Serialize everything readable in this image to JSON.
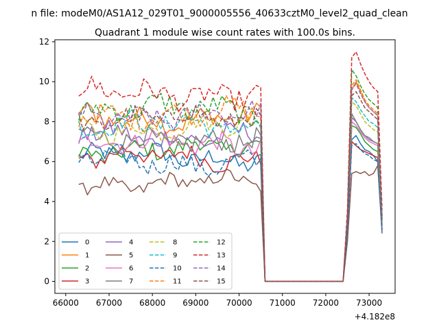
{
  "chart_data": {
    "type": "line",
    "suptitle": "n file: modeM0/AS1A12_029T01_9000005556_40633cztM0_level2_quad_clean",
    "title": "Quadrant 1 module wise count rates with 100.0s bins.",
    "xlabel": "",
    "ylabel": "",
    "x_offset_label": "+4.182e8",
    "xlim": [
      65750,
      73600
    ],
    "ylim": [
      -0.6,
      12.1
    ],
    "x_ticks": [
      66000,
      67000,
      68000,
      69000,
      70000,
      71000,
      72000,
      73000
    ],
    "x_tick_labels": [
      "66000",
      "67000",
      "68000",
      "69000",
      "70000",
      "71000",
      "72000",
      "73000"
    ],
    "y_ticks": [
      0,
      2,
      4,
      6,
      8,
      10,
      12
    ],
    "y_tick_labels": [
      "0",
      "2",
      "4",
      "6",
      "8",
      "10",
      "12"
    ],
    "grid": false,
    "legend_position": "lower-left",
    "x_segments": {
      "seg1": {
        "start": 66300,
        "end": 70500,
        "step": 100
      },
      "gap_zero": [
        70600,
        72400
      ],
      "seg2": {
        "start": 72500,
        "end": 73300,
        "step": 100
      }
    },
    "series": [
      {
        "name": "0",
        "color": "#1f77b4",
        "dashed": false,
        "seg1_base": 6.2,
        "seg1_amp": 0.45,
        "seg2": [
          2.5,
          7.1,
          7.3,
          6.9,
          6.6,
          6.5,
          6.3,
          6.0,
          2.6
        ]
      },
      {
        "name": "1",
        "color": "#ff7f0e",
        "dashed": false,
        "seg1_base": 8.2,
        "seg1_amp": 0.5,
        "seg2": [
          3.1,
          9.6,
          10.0,
          9.5,
          9.0,
          8.7,
          8.5,
          8.3,
          3.0
        ]
      },
      {
        "name": "2",
        "color": "#2ca02c",
        "dashed": false,
        "seg1_base": 6.6,
        "seg1_amp": 0.45,
        "seg2": [
          2.7,
          7.8,
          7.7,
          7.4,
          7.0,
          6.8,
          6.6,
          6.5,
          2.7
        ]
      },
      {
        "name": "3",
        "color": "#d62728",
        "dashed": false,
        "seg1_base": 6.2,
        "seg1_amp": 0.45,
        "seg2": [
          2.6,
          7.0,
          6.8,
          6.6,
          6.5,
          6.4,
          6.3,
          6.2,
          2.6
        ]
      },
      {
        "name": "4",
        "color": "#9467bd",
        "dashed": false,
        "seg1_base": 7.3,
        "seg1_amp": 0.5,
        "seg2": [
          2.8,
          8.2,
          8.0,
          7.6,
          7.3,
          7.1,
          7.0,
          6.9,
          2.8
        ]
      },
      {
        "name": "5",
        "color": "#8c564b",
        "dashed": false,
        "seg1_base": 4.9,
        "seg1_amp": 0.35,
        "seg2": [
          2.0,
          5.4,
          5.5,
          5.4,
          5.5,
          5.3,
          5.4,
          5.8,
          2.4
        ]
      },
      {
        "name": "6",
        "color": "#e377c2",
        "dashed": false,
        "seg1_base": 6.9,
        "seg1_amp": 0.5,
        "seg2": [
          2.8,
          8.0,
          7.8,
          7.5,
          7.2,
          7.0,
          6.9,
          6.8,
          2.7
        ]
      },
      {
        "name": "7",
        "color": "#7f7f7f",
        "dashed": false,
        "seg1_base": 7.1,
        "seg1_amp": 0.5,
        "seg2": [
          2.8,
          8.4,
          8.0,
          7.6,
          7.3,
          7.2,
          7.0,
          6.9,
          2.8
        ]
      },
      {
        "name": "8",
        "color": "#bcbd22",
        "dashed": true,
        "seg1_base": 7.7,
        "seg1_amp": 0.45,
        "seg2": [
          3.0,
          9.0,
          8.8,
          8.4,
          8.0,
          7.8,
          7.6,
          7.5,
          3.0
        ]
      },
      {
        "name": "9",
        "color": "#17becf",
        "dashed": true,
        "seg1_base": 7.8,
        "seg1_amp": 0.5,
        "seg2": [
          3.1,
          9.2,
          9.0,
          8.6,
          8.3,
          8.0,
          7.9,
          7.7,
          3.1
        ]
      },
      {
        "name": "10",
        "color": "#1f77b4",
        "dashed": true,
        "seg1_base": 6.0,
        "seg1_amp": 0.5,
        "seg2": [
          2.4,
          6.8,
          6.9,
          6.6,
          6.4,
          6.3,
          6.1,
          6.0,
          2.4
        ]
      },
      {
        "name": "11",
        "color": "#ff7f0e",
        "dashed": true,
        "seg1_base": 8.4,
        "seg1_amp": 0.5,
        "seg2": [
          3.2,
          9.8,
          10.1,
          9.6,
          9.1,
          8.8,
          8.6,
          8.4,
          3.2
        ]
      },
      {
        "name": "12",
        "color": "#2ca02c",
        "dashed": true,
        "seg1_base": 8.6,
        "seg1_amp": 0.55,
        "seg2": [
          3.3,
          10.6,
          10.3,
          9.8,
          9.4,
          9.1,
          8.9,
          8.7,
          3.3
        ]
      },
      {
        "name": "13",
        "color": "#d62728",
        "dashed": true,
        "seg1_base": 9.4,
        "seg1_amp": 0.55,
        "seg2": [
          3.6,
          11.2,
          11.5,
          10.9,
          10.4,
          10.0,
          9.7,
          9.5,
          3.6
        ]
      },
      {
        "name": "14",
        "color": "#9467bd",
        "dashed": true,
        "seg1_base": 8.3,
        "seg1_amp": 0.5,
        "seg2": [
          3.2,
          9.6,
          9.9,
          9.4,
          9.0,
          8.7,
          8.5,
          8.3,
          3.2
        ]
      },
      {
        "name": "15",
        "color": "#8c564b",
        "dashed": true,
        "seg1_base": 8.1,
        "seg1_amp": 0.5,
        "seg2": [
          3.1,
          9.3,
          9.5,
          9.1,
          8.7,
          8.5,
          8.3,
          8.1,
          3.1
        ]
      }
    ]
  }
}
